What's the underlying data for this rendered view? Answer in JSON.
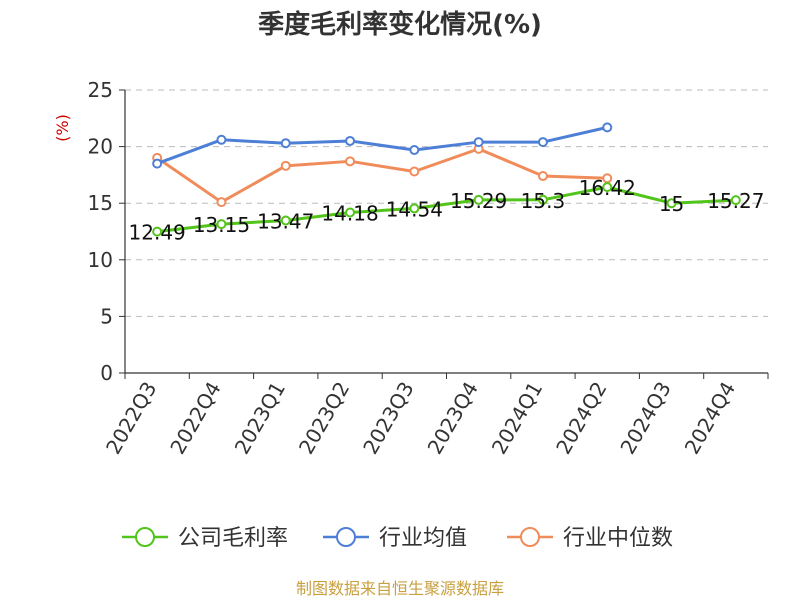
{
  "chart_data": {
    "type": "line",
    "title": "季度毛利率变化情况(%)",
    "ylabel": "(%)",
    "ylim": [
      0,
      25
    ],
    "yticks": [
      0,
      5,
      10,
      15,
      20,
      25
    ],
    "grid": true,
    "categories": [
      "2022Q3",
      "2022Q4",
      "2023Q1",
      "2023Q2",
      "2023Q3",
      "2023Q4",
      "2024Q1",
      "2024Q2",
      "2024Q3",
      "2024Q4"
    ],
    "series": [
      {
        "name": "公司毛利率",
        "color": "#52c41a",
        "values": [
          12.49,
          13.15,
          13.47,
          14.18,
          14.54,
          15.29,
          15.3,
          16.42,
          15,
          15.27
        ],
        "labels": [
          "12.49",
          "13.15",
          "13.47",
          "14.18",
          "14.54",
          "15.29",
          "15.3",
          "16.42",
          "15",
          "15.27"
        ]
      },
      {
        "name": "行业均值",
        "color": "#4e7fd6",
        "values": [
          18.5,
          20.6,
          20.3,
          20.5,
          19.7,
          20.4,
          20.4,
          21.7,
          null,
          null
        ]
      },
      {
        "name": "行业中位数",
        "color": "#f08c5a",
        "values": [
          19.0,
          15.1,
          18.3,
          18.7,
          17.8,
          19.8,
          17.4,
          17.2,
          null,
          null
        ]
      }
    ],
    "legend_position": "bottom",
    "source": "制图数据来自恒生聚源数据库"
  }
}
